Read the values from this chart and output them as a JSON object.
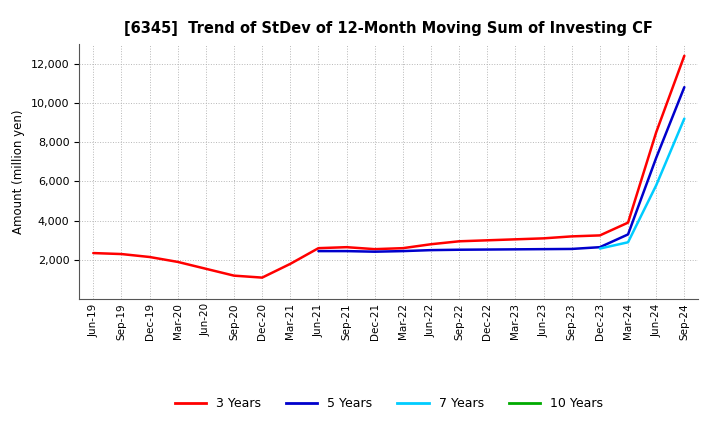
{
  "title": "[6345]  Trend of StDev of 12-Month Moving Sum of Investing CF",
  "ylabel": "Amount (million yen)",
  "background_color": "#ffffff",
  "grid_color": "#b0b0b0",
  "x_labels": [
    "Jun-19",
    "Sep-19",
    "Dec-19",
    "Mar-20",
    "Jun-20",
    "Sep-20",
    "Dec-20",
    "Mar-21",
    "Jun-21",
    "Sep-21",
    "Dec-21",
    "Mar-22",
    "Jun-22",
    "Sep-22",
    "Dec-22",
    "Mar-23",
    "Jun-23",
    "Sep-23",
    "Dec-23",
    "Mar-24",
    "Jun-24",
    "Sep-24"
  ],
  "series": {
    "3 Years": {
      "color": "#ff0000",
      "linewidth": 1.8,
      "values": [
        2350,
        2300,
        2150,
        1900,
        1550,
        1200,
        1100,
        1800,
        2600,
        2650,
        2550,
        2600,
        2800,
        2950,
        3000,
        3050,
        3100,
        3200,
        3250,
        3900,
        8500,
        12400
      ]
    },
    "5 Years": {
      "color": "#0000cc",
      "linewidth": 1.8,
      "values": [
        null,
        null,
        null,
        null,
        null,
        null,
        null,
        null,
        2450,
        2450,
        2420,
        2450,
        2500,
        2520,
        2530,
        2540,
        2550,
        2560,
        2650,
        3300,
        7200,
        10800
      ]
    },
    "7 Years": {
      "color": "#00ccff",
      "linewidth": 1.8,
      "values": [
        null,
        null,
        null,
        null,
        null,
        null,
        null,
        null,
        null,
        null,
        null,
        null,
        null,
        null,
        null,
        null,
        null,
        null,
        2580,
        2900,
        5800,
        9200
      ]
    },
    "10 Years": {
      "color": "#00aa00",
      "linewidth": 1.8,
      "values": [
        null,
        null,
        null,
        null,
        null,
        null,
        null,
        null,
        null,
        null,
        null,
        null,
        null,
        null,
        null,
        null,
        null,
        null,
        null,
        null,
        null,
        null
      ]
    }
  },
  "ylim": [
    0,
    13000
  ],
  "yticks": [
    2000,
    4000,
    6000,
    8000,
    10000,
    12000
  ],
  "legend_labels": [
    "3 Years",
    "5 Years",
    "7 Years",
    "10 Years"
  ],
  "legend_colors": [
    "#ff0000",
    "#0000cc",
    "#00ccff",
    "#00aa00"
  ]
}
